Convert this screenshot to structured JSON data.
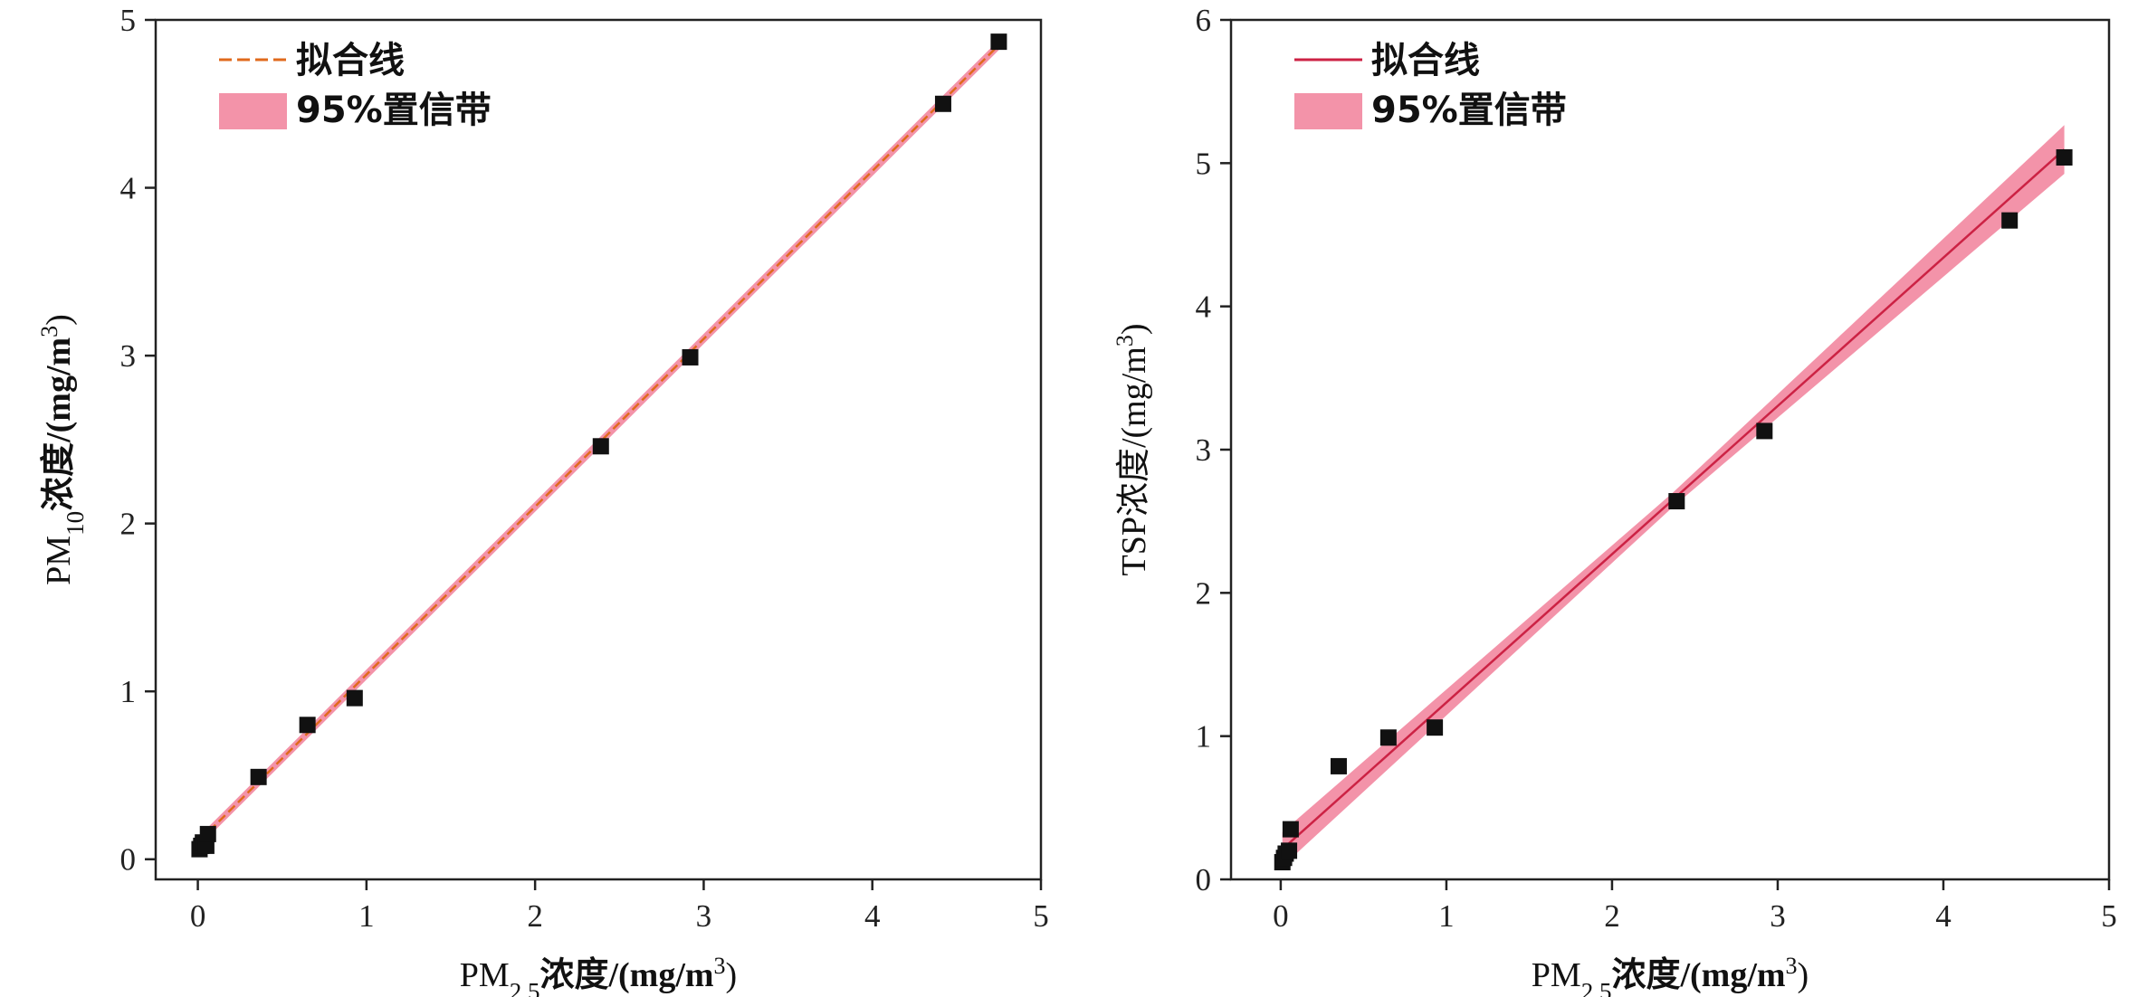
{
  "colors": {
    "marker": "#111111",
    "band_fill": "#ef6f8c",
    "left_fit_line": "#e06a1c",
    "right_fit_line": "#cc2244",
    "axis": "#222222"
  },
  "chart_data": [
    {
      "type": "scatter",
      "name": "PM10 vs PM2.5",
      "xlabel": {
        "main": "PM",
        "sub": "2.5",
        "rest": "浓度/(mg/m",
        "sup": "3",
        "close": ")"
      },
      "ylabel": {
        "main": "PM",
        "sub": "10",
        "rest": "浓度/(mg/m",
        "sup": "3",
        "close": ")"
      },
      "xlim": [
        -0.25,
        5
      ],
      "ylim": [
        -0.12,
        5
      ],
      "xticks": [
        0,
        1,
        2,
        3,
        4,
        5
      ],
      "yticks": [
        0,
        1,
        2,
        3,
        4,
        5
      ],
      "legend": {
        "position": "top-left",
        "items": [
          {
            "label": "拟合线",
            "kind": "dashed-line"
          },
          {
            "label": "95%置信带",
            "kind": "band"
          }
        ]
      },
      "fit": {
        "slope": 1.0,
        "intercept": 0.1,
        "band_halfwidth": 0.03
      },
      "points": [
        {
          "x": 0.01,
          "y": 0.06
        },
        {
          "x": 0.02,
          "y": 0.08
        },
        {
          "x": 0.03,
          "y": 0.1
        },
        {
          "x": 0.05,
          "y": 0.08
        },
        {
          "x": 0.06,
          "y": 0.15
        },
        {
          "x": 0.36,
          "y": 0.49
        },
        {
          "x": 0.65,
          "y": 0.8
        },
        {
          "x": 0.93,
          "y": 0.96
        },
        {
          "x": 2.39,
          "y": 2.46
        },
        {
          "x": 2.92,
          "y": 2.99
        },
        {
          "x": 4.42,
          "y": 4.5
        },
        {
          "x": 4.75,
          "y": 4.87
        }
      ]
    },
    {
      "type": "scatter",
      "name": "TSP vs PM2.5",
      "xlabel": {
        "main": "PM",
        "sub": "2.5",
        "rest": "浓度/(mg/m",
        "sup": "3",
        "close": ")"
      },
      "ylabel": {
        "main": "TSP浓度/(mg/m",
        "sub": "",
        "rest": "",
        "sup": "3",
        "close": ")"
      },
      "xlim": [
        -0.3,
        5
      ],
      "ylim": [
        0,
        6
      ],
      "xticks": [
        0,
        1,
        2,
        3,
        4,
        5
      ],
      "yticks": [
        0,
        1,
        2,
        3,
        4,
        5,
        6
      ],
      "legend": {
        "position": "top-left",
        "items": [
          {
            "label": "拟合线",
            "kind": "solid-line"
          },
          {
            "label": "95%置信带",
            "kind": "band"
          }
        ]
      },
      "fit": {
        "slope": 1.035,
        "intercept": 0.2,
        "band_halfwidth_start": 0.12,
        "band_halfwidth_mid": 0.05,
        "band_halfwidth_end": 0.17
      },
      "points": [
        {
          "x": 0.01,
          "y": 0.12
        },
        {
          "x": 0.02,
          "y": 0.15
        },
        {
          "x": 0.03,
          "y": 0.18
        },
        {
          "x": 0.05,
          "y": 0.2
        },
        {
          "x": 0.06,
          "y": 0.35
        },
        {
          "x": 0.35,
          "y": 0.79
        },
        {
          "x": 0.65,
          "y": 0.99
        },
        {
          "x": 0.93,
          "y": 1.06
        },
        {
          "x": 2.39,
          "y": 2.64
        },
        {
          "x": 2.92,
          "y": 3.13
        },
        {
          "x": 4.4,
          "y": 4.6
        },
        {
          "x": 4.73,
          "y": 5.04
        }
      ]
    }
  ]
}
